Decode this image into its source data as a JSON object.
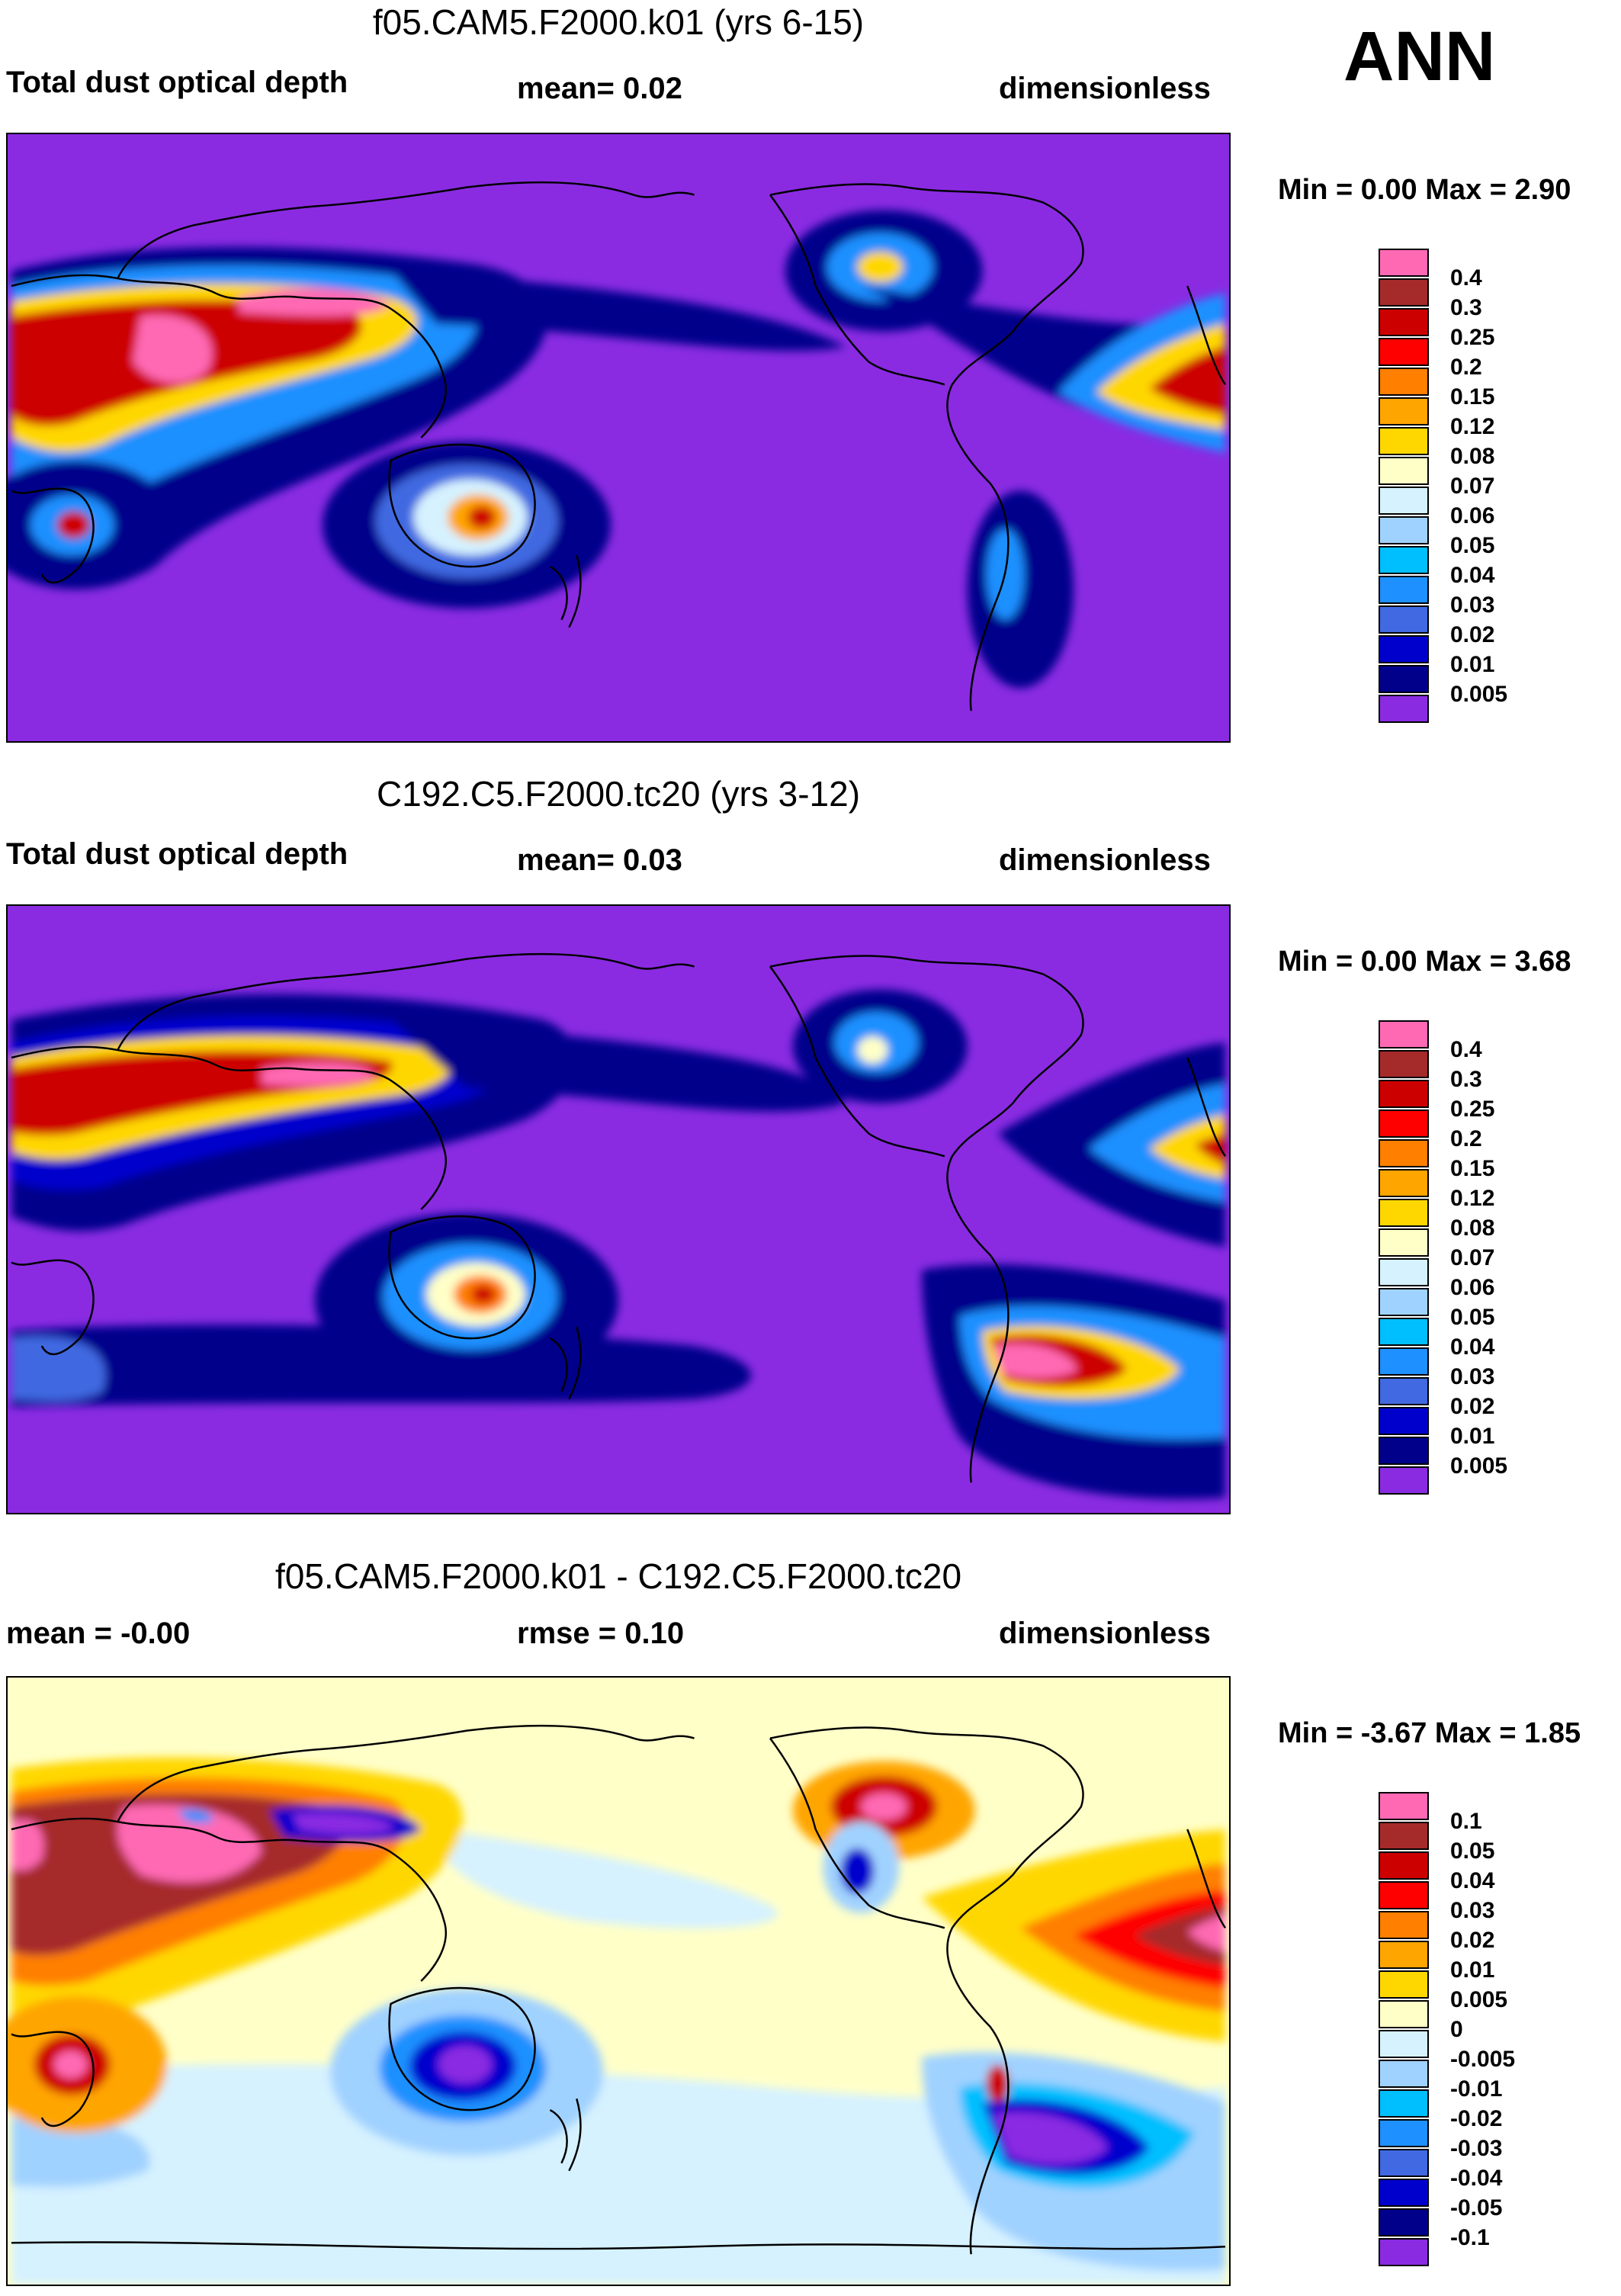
{
  "season": "ANN",
  "panels": [
    {
      "title": "f05.CAM5.F2000.k01 (yrs 6-15)",
      "left": "Total dust optical depth",
      "mid": "mean=   0.02",
      "right": "dimensionless",
      "minmax": "Min =   0.00 Max =   2.90",
      "levels": [
        "0.4",
        "0.3",
        "0.25",
        "0.2",
        "0.15",
        "0.12",
        "0.08",
        "0.07",
        "0.06",
        "0.05",
        "0.04",
        "0.03",
        "0.02",
        "0.01",
        "0.005"
      ],
      "colors": [
        "#ff69b4",
        "#a52a2a",
        "#cd0000",
        "#ff0000",
        "#ff7f00",
        "#ffa500",
        "#ffd700",
        "#ffffc8",
        "#d6f2ff",
        "#a0d2ff",
        "#00bfff",
        "#1e90ff",
        "#4169e1",
        "#0000cd",
        "#00008b",
        "#8a2be2"
      ]
    },
    {
      "title": "C192.C5.F2000.tc20 (yrs 3-12)",
      "left": "Total dust optical depth",
      "mid": "mean=   0.03",
      "right": "dimensionless",
      "minmax": "Min =   0.00 Max =   3.68",
      "levels": [
        "0.4",
        "0.3",
        "0.25",
        "0.2",
        "0.15",
        "0.12",
        "0.08",
        "0.07",
        "0.06",
        "0.05",
        "0.04",
        "0.03",
        "0.02",
        "0.01",
        "0.005"
      ],
      "colors": [
        "#ff69b4",
        "#a52a2a",
        "#cd0000",
        "#ff0000",
        "#ff7f00",
        "#ffa500",
        "#ffd700",
        "#ffffc8",
        "#d6f2ff",
        "#a0d2ff",
        "#00bfff",
        "#1e90ff",
        "#4169e1",
        "#0000cd",
        "#00008b",
        "#8a2be2"
      ]
    },
    {
      "title": "f05.CAM5.F2000.k01 - C192.C5.F2000.tc20",
      "left": "mean =  -0.00",
      "mid": "rmse =   0.10",
      "right": "dimensionless",
      "minmax": "Min =  -3.67 Max =   1.85",
      "levels": [
        "0.1",
        "0.05",
        "0.04",
        "0.03",
        "0.02",
        "0.01",
        "0.005",
        "0",
        "-0.005",
        "-0.01",
        "-0.02",
        "-0.03",
        "-0.04",
        "-0.05",
        "-0.1"
      ],
      "colors": [
        "#ff69b4",
        "#a52a2a",
        "#cd0000",
        "#ff0000",
        "#ff7f00",
        "#ffa500",
        "#ffd700",
        "#ffffc8",
        "#d6f2ff",
        "#a0d2ff",
        "#00bfff",
        "#1e90ff",
        "#4169e1",
        "#0000cd",
        "#00008b",
        "#8a2be2"
      ]
    }
  ]
}
